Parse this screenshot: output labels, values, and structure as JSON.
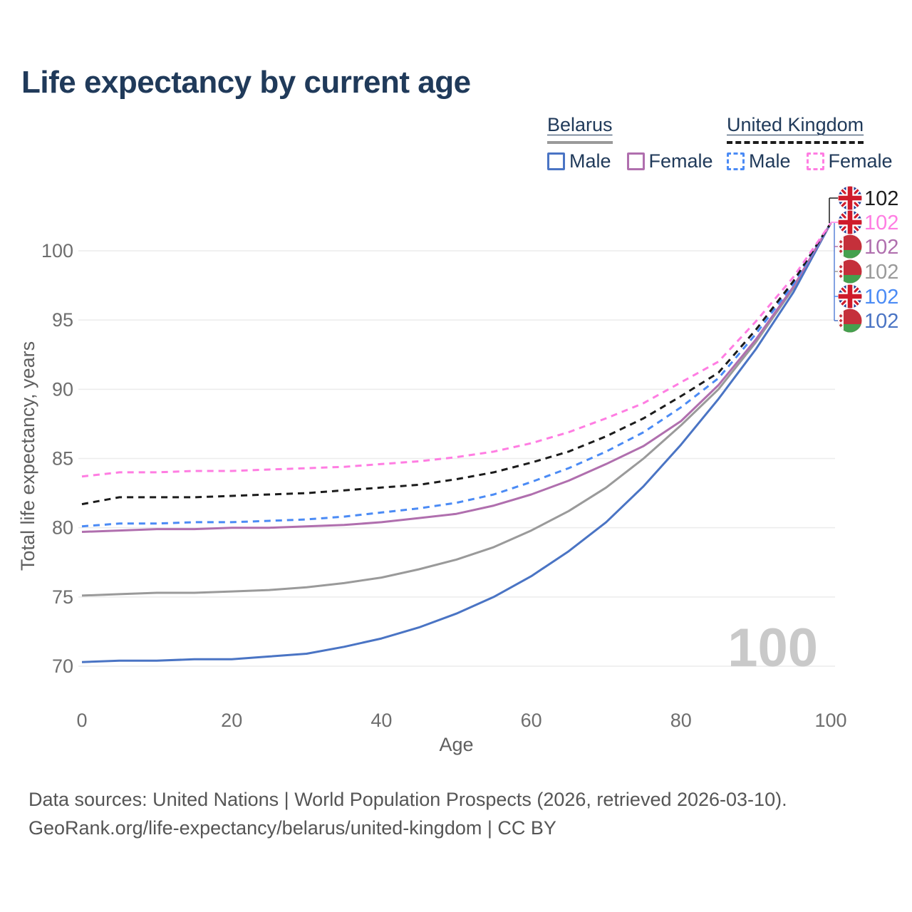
{
  "title": "Life expectancy by current age",
  "legend": {
    "belarus": {
      "label": "Belarus",
      "male_label": "Male",
      "female_label": "Female",
      "line_style": "solid"
    },
    "united_kingdom": {
      "label": "United Kingdom",
      "male_label": "Male",
      "female_label": "Female",
      "line_style": "dashed"
    }
  },
  "colors": {
    "belarus_male": "#4a74c4",
    "belarus_female": "#b06fae",
    "belarus_total": "#9a9a9a",
    "uk_male": "#4b8bf5",
    "uk_female": "#ff7de2",
    "uk_total": "#1c1c1c",
    "heading_text": "#203a5a",
    "tick_text": "#6e6e6e",
    "grid": "#ececec",
    "watermark_text": "#c9c9c9",
    "footer_text": "#555555",
    "leader_blue": "#5b84d8"
  },
  "chart_data": {
    "type": "line",
    "title": "Life expectancy by current age",
    "xlabel": "Age",
    "ylabel": "Total life expectancy, years",
    "xlim": [
      0,
      100
    ],
    "ylim": [
      70,
      102
    ],
    "x_ticks": [
      0,
      20,
      40,
      60,
      80,
      100
    ],
    "y_ticks": [
      70,
      75,
      80,
      85,
      90,
      95,
      100
    ],
    "grid": "horizontal",
    "legend_position": "top-right",
    "watermark": "100",
    "ages": [
      0,
      5,
      10,
      15,
      20,
      25,
      30,
      35,
      40,
      45,
      50,
      55,
      60,
      65,
      70,
      75,
      80,
      85,
      90,
      95,
      100
    ],
    "series": [
      {
        "name": "Belarus Total",
        "country": "Belarus",
        "sex": "Total",
        "style": "solid",
        "color": "#9a9a9a",
        "values": [
          75.1,
          75.2,
          75.3,
          75.3,
          75.4,
          75.5,
          75.7,
          76.0,
          76.4,
          77.0,
          77.7,
          78.6,
          79.8,
          81.2,
          82.9,
          85.0,
          87.4,
          90.0,
          93.4,
          97.3,
          102
        ]
      },
      {
        "name": "Belarus Male",
        "country": "Belarus",
        "sex": "Male",
        "style": "solid",
        "color": "#4a74c4",
        "values": [
          70.3,
          70.4,
          70.4,
          70.5,
          70.5,
          70.7,
          70.9,
          71.4,
          72.0,
          72.8,
          73.8,
          75.0,
          76.5,
          78.3,
          80.4,
          83.0,
          86.0,
          89.3,
          92.9,
          97.0,
          102
        ]
      },
      {
        "name": "Belarus Female",
        "country": "Belarus",
        "sex": "Female",
        "style": "solid",
        "color": "#b06fae",
        "values": [
          79.7,
          79.8,
          79.9,
          79.9,
          80.0,
          80.0,
          80.1,
          80.2,
          80.4,
          80.7,
          81.0,
          81.6,
          82.4,
          83.4,
          84.6,
          85.9,
          87.7,
          90.3,
          93.6,
          97.4,
          102
        ]
      },
      {
        "name": "United Kingdom Male",
        "country": "United Kingdom",
        "sex": "Male",
        "style": "dashed",
        "color": "#4b8bf5",
        "values": [
          80.1,
          80.3,
          80.3,
          80.4,
          80.4,
          80.5,
          80.6,
          80.8,
          81.1,
          81.4,
          81.8,
          82.4,
          83.3,
          84.3,
          85.5,
          86.9,
          88.7,
          90.8,
          94.0,
          97.6,
          102
        ]
      },
      {
        "name": "United Kingdom Total",
        "country": "United Kingdom",
        "sex": "Total",
        "style": "dashed",
        "color": "#1c1c1c",
        "values": [
          81.7,
          82.2,
          82.2,
          82.2,
          82.3,
          82.4,
          82.5,
          82.7,
          82.9,
          83.1,
          83.5,
          84.0,
          84.7,
          85.5,
          86.6,
          87.9,
          89.5,
          91.2,
          94.3,
          97.8,
          102
        ]
      },
      {
        "name": "United Kingdom Female",
        "country": "United Kingdom",
        "sex": "Female",
        "style": "dashed",
        "color": "#ff7de2",
        "values": [
          83.7,
          84.0,
          84.0,
          84.1,
          84.1,
          84.2,
          84.3,
          84.4,
          84.6,
          84.8,
          85.1,
          85.5,
          86.1,
          86.9,
          87.9,
          89.0,
          90.5,
          92.0,
          94.9,
          98.1,
          102
        ]
      }
    ],
    "end_labels": [
      {
        "flag": "united-kingdom",
        "label": "102",
        "series": "United Kingdom Total",
        "color": "#1c1c1c"
      },
      {
        "flag": "united-kingdom",
        "label": "102",
        "series": "United Kingdom Female",
        "color": "#ff7de2"
      },
      {
        "flag": "belarus",
        "label": "102",
        "series": "Belarus Female",
        "color": "#b06fae"
      },
      {
        "flag": "belarus",
        "label": "102",
        "series": "Belarus Total",
        "color": "#9a9a9a"
      },
      {
        "flag": "united-kingdom",
        "label": "102",
        "series": "United Kingdom Male",
        "color": "#4b8bf5"
      },
      {
        "flag": "belarus",
        "label": "102",
        "series": "Belarus Male",
        "color": "#4a74c4"
      }
    ]
  },
  "footer": {
    "line1": "Data sources: United Nations | World Population Prospects (2026, retrieved 2026-03-10).",
    "line2": "GeoRank.org/life-expectancy/belarus/united-kingdom | CC BY"
  }
}
